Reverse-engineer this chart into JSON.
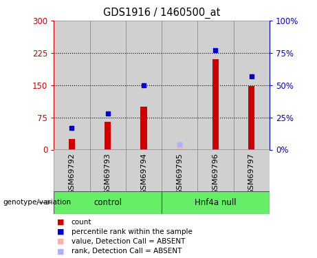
{
  "title": "GDS1916 / 1460500_at",
  "samples": [
    "GSM69792",
    "GSM69793",
    "GSM69794",
    "GSM69795",
    "GSM69796",
    "GSM69797"
  ],
  "red_bars": [
    25,
    65,
    100,
    0,
    210,
    148
  ],
  "blue_squares_pct": [
    17,
    28,
    50,
    0,
    77,
    57
  ],
  "pink_bars": [
    0,
    0,
    0,
    15,
    0,
    0
  ],
  "light_blue_pct": [
    0,
    0,
    0,
    4,
    0,
    0
  ],
  "absent_flags": [
    false,
    false,
    false,
    true,
    false,
    false
  ],
  "group_ranges": [
    [
      -0.5,
      2.5,
      "control"
    ],
    [
      2.5,
      5.5,
      "Hnf4a null"
    ]
  ],
  "ylim_left": [
    0,
    300
  ],
  "ylim_right": [
    0,
    100
  ],
  "yticks_left": [
    0,
    75,
    150,
    225,
    300
  ],
  "yticks_right": [
    0,
    25,
    50,
    75,
    100
  ],
  "ytick_labels_left": [
    "0",
    "75",
    "150",
    "225",
    "300"
  ],
  "ytick_labels_right": [
    "0%",
    "25%",
    "50%",
    "75%",
    "100%"
  ],
  "bar_color": "#cc0000",
  "square_color": "#0000cc",
  "absent_bar_color": "#ffb0b0",
  "absent_square_color": "#b0b0ff",
  "group_bg_color": "#66ee66",
  "sample_bg_color": "#d0d0d0",
  "plot_bg_color": "#ffffff",
  "left_tick_color": "#cc0000",
  "right_tick_color": "#0000cc",
  "legend_items": [
    {
      "label": "count",
      "color": "#cc0000"
    },
    {
      "label": "percentile rank within the sample",
      "color": "#0000cc"
    },
    {
      "label": "value, Detection Call = ABSENT",
      "color": "#ffb0b0"
    },
    {
      "label": "rank, Detection Call = ABSENT",
      "color": "#b0b0ff"
    }
  ],
  "genotype_label": "genotype/variation",
  "bar_width": 0.18,
  "marker_size": 5
}
